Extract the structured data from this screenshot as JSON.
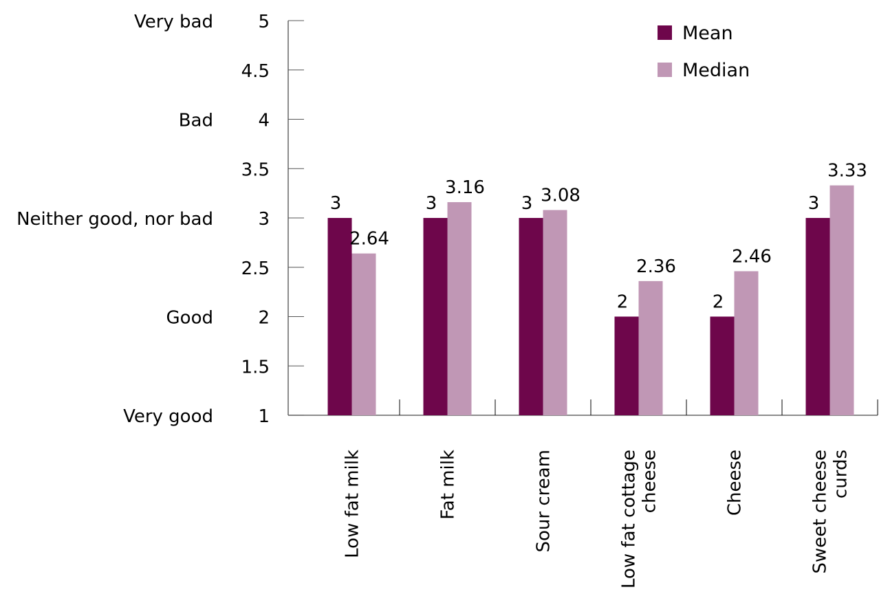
{
  "chart_data": {
    "type": "bar",
    "categories": [
      "Low fat milk",
      "Fat milk",
      "Sour cream",
      "Low fat cottage cheese",
      "Cheese",
      "Sweet cheese curds"
    ],
    "category_lines": [
      [
        "Low fat milk"
      ],
      [
        "Fat milk"
      ],
      [
        "Sour cream"
      ],
      [
        "Low fat cottage",
        "cheese"
      ],
      [
        "Cheese"
      ],
      [
        "Sweet cheese",
        "curds"
      ]
    ],
    "series": [
      {
        "name": "Mean",
        "color": "#6e064b",
        "values": [
          3,
          3,
          3,
          2,
          2,
          3
        ],
        "labels": [
          "3",
          "3",
          "3",
          "2",
          "2",
          "3"
        ]
      },
      {
        "name": "Median",
        "color": "#c097b5",
        "values": [
          2.64,
          3.16,
          3.08,
          2.36,
          2.46,
          3.33
        ],
        "labels": [
          "2.64",
          "3.16",
          "3.08",
          "2.36",
          "2.46",
          "3.33"
        ]
      }
    ],
    "ylim": [
      1,
      5
    ],
    "yticks": [
      "1",
      "1.5",
      "2",
      "2.5",
      "3",
      "3.5",
      "4",
      "4.5",
      "5"
    ],
    "ytick_values": [
      1,
      1.5,
      2,
      2.5,
      3,
      3.5,
      4,
      4.5,
      5
    ],
    "y_rating_labels": [
      {
        "value": 1,
        "label": "Very good"
      },
      {
        "value": 2,
        "label": "Good"
      },
      {
        "value": 3,
        "label": "Neither good, nor bad"
      },
      {
        "value": 4,
        "label": "Bad"
      },
      {
        "value": 5,
        "label": "Very bad"
      }
    ],
    "legend_position": "top-right",
    "grid": false
  }
}
